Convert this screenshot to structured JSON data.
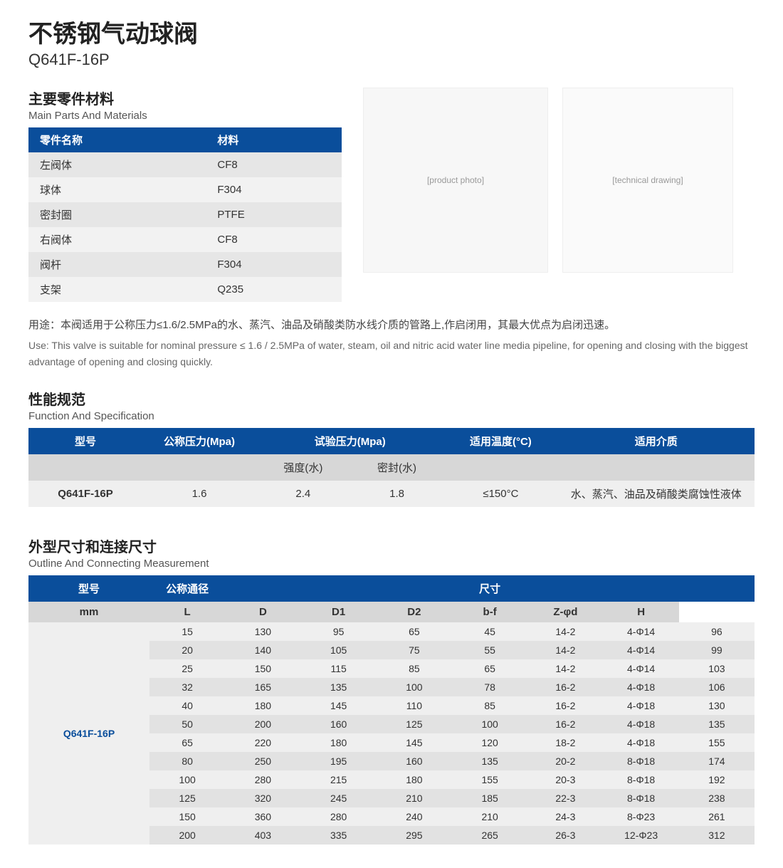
{
  "title": {
    "cn": "不锈钢气动球阀",
    "model": "Q641F-16P"
  },
  "colors": {
    "header_bg": "#0a4e9b",
    "header_fg": "#ffffff",
    "row_alt1": "#efefef",
    "row_alt2": "#e2e2e2",
    "sub_header_bg": "#d7d7d7"
  },
  "materials": {
    "title_cn": "主要零件材料",
    "title_en": "Main Parts And Materials",
    "headers": {
      "part": "零件名称",
      "material": "材料"
    },
    "rows": [
      {
        "part": "左阀体",
        "material": "CF8"
      },
      {
        "part": "球体",
        "material": "F304"
      },
      {
        "part": "密封圈",
        "material": "PTFE"
      },
      {
        "part": "右阀体",
        "material": "CF8"
      },
      {
        "part": "阀杆",
        "material": "F304"
      },
      {
        "part": "支架",
        "material": "Q235"
      }
    ]
  },
  "images": {
    "photo_label": "[product photo]",
    "diagram_label": "[technical drawing]"
  },
  "usage": {
    "cn": "用途：本阀适用于公称压力≤1.6/2.5MPa的水、蒸汽、油品及硝酸类防水线介质的管路上,作启闭用，其最大优点为启闭迅速。",
    "en": "Use: This valve is suitable for nominal pressure ≤ 1.6 / 2.5MPa of water, steam, oil and nitric acid water line media pipeline, for opening and closing with the biggest advantage of opening and closing quickly."
  },
  "spec": {
    "title_cn": "性能规范",
    "title_en": "Function And Specification",
    "headers": {
      "model": "型号",
      "nominal_pressure": "公称压力(Mpa)",
      "test_pressure": "试验压力(Mpa)",
      "temp": "适用温度(°C)",
      "medium": "适用介质"
    },
    "sub_headers": {
      "strength": "强度(水)",
      "seal": "密封(水)"
    },
    "row": {
      "model": "Q641F-16P",
      "nominal": "1.6",
      "strength": "2.4",
      "seal": "1.8",
      "temp": "≤150°C",
      "medium": "水、蒸汽、油品及硝酸类腐蚀性液体"
    }
  },
  "dim": {
    "title_cn": "外型尺寸和连接尺寸",
    "title_en": "Outline And Connecting Measurement",
    "headers": {
      "model": "型号",
      "nominal_dia": "公称通径",
      "dimension": "尺寸"
    },
    "sub_headers": [
      "mm",
      "L",
      "D",
      "D1",
      "D2",
      "b-f",
      "Z-φd",
      "H"
    ],
    "model": "Q641F-16P",
    "rows": [
      [
        "15",
        "130",
        "95",
        "65",
        "45",
        "14-2",
        "4-Φ14",
        "96"
      ],
      [
        "20",
        "140",
        "105",
        "75",
        "55",
        "14-2",
        "4-Φ14",
        "99"
      ],
      [
        "25",
        "150",
        "115",
        "85",
        "65",
        "14-2",
        "4-Φ14",
        "103"
      ],
      [
        "32",
        "165",
        "135",
        "100",
        "78",
        "16-2",
        "4-Φ18",
        "106"
      ],
      [
        "40",
        "180",
        "145",
        "110",
        "85",
        "16-2",
        "4-Φ18",
        "130"
      ],
      [
        "50",
        "200",
        "160",
        "125",
        "100",
        "16-2",
        "4-Φ18",
        "135"
      ],
      [
        "65",
        "220",
        "180",
        "145",
        "120",
        "18-2",
        "4-Φ18",
        "155"
      ],
      [
        "80",
        "250",
        "195",
        "160",
        "135",
        "20-2",
        "8-Φ18",
        "174"
      ],
      [
        "100",
        "280",
        "215",
        "180",
        "155",
        "20-3",
        "8-Φ18",
        "192"
      ],
      [
        "125",
        "320",
        "245",
        "210",
        "185",
        "22-3",
        "8-Φ18",
        "238"
      ],
      [
        "150",
        "360",
        "280",
        "240",
        "210",
        "24-3",
        "8-Φ23",
        "261"
      ],
      [
        "200",
        "403",
        "335",
        "295",
        "265",
        "26-3",
        "12-Φ23",
        "312"
      ]
    ]
  }
}
